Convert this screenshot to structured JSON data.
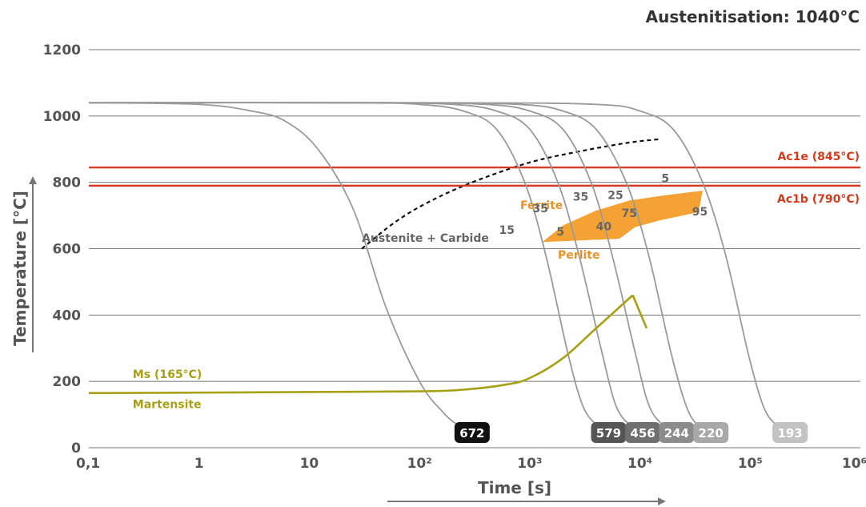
{
  "chart_data": {
    "type": "line",
    "title": "Austenitisation: 1040°C",
    "xlabel": "Time [s]",
    "ylabel": "Temperature [°C]",
    "x_scale": "log",
    "xlim": [
      0.1,
      1000000
    ],
    "ylim": [
      0,
      1200
    ],
    "x_ticks": [
      {
        "value": 0.1,
        "label": "0,1"
      },
      {
        "value": 1,
        "label": "1"
      },
      {
        "value": 10,
        "label": "10"
      },
      {
        "value": 100,
        "label": "10²"
      },
      {
        "value": 1000,
        "label": "10³"
      },
      {
        "value": 10000,
        "label": "10⁴"
      },
      {
        "value": 100000,
        "label": "10⁵"
      },
      {
        "value": 1000000,
        "label": "10⁶"
      }
    ],
    "y_ticks": [
      {
        "value": 0,
        "label": "0"
      },
      {
        "value": 200,
        "label": "200"
      },
      {
        "value": 400,
        "label": "400"
      },
      {
        "value": 600,
        "label": "600"
      },
      {
        "value": 800,
        "label": "800"
      },
      {
        "value": 1000,
        "label": "1000"
      },
      {
        "value": 1200,
        "label": "1200"
      }
    ],
    "grid": true,
    "reference_lines": [
      {
        "label": "Ac1e (845°C)",
        "y": 845
      },
      {
        "label": "Ac1b (790°C)",
        "y": 790
      }
    ],
    "cooling_curves": [
      {
        "hardness": "672",
        "hard_x": 300,
        "hard_color": "#111111",
        "points": [
          [
            0.1,
            1040
          ],
          [
            1,
            1035
          ],
          [
            3,
            1015
          ],
          [
            6,
            985
          ],
          [
            12,
            900
          ],
          [
            25,
            720
          ],
          [
            50,
            420
          ],
          [
            100,
            200
          ],
          [
            160,
            110
          ],
          [
            220,
            70
          ],
          [
            300,
            50
          ]
        ]
      },
      {
        "hardness": "579",
        "hard_x": 5200,
        "hard_color": "#555555",
        "points": [
          [
            0.1,
            1040
          ],
          [
            20,
            1040
          ],
          [
            100,
            1035
          ],
          [
            250,
            1015
          ],
          [
            500,
            960
          ],
          [
            900,
            800
          ],
          [
            1400,
            580
          ],
          [
            2200,
            290
          ],
          [
            3000,
            130
          ],
          [
            4000,
            70
          ],
          [
            5200,
            50
          ]
        ]
      },
      {
        "hardness": "456",
        "hard_x": 10600,
        "hard_color": "#6f6f6f",
        "points": [
          [
            0.1,
            1040
          ],
          [
            30,
            1040
          ],
          [
            200,
            1035
          ],
          [
            500,
            1015
          ],
          [
            1000,
            960
          ],
          [
            1800,
            800
          ],
          [
            2800,
            580
          ],
          [
            4500,
            290
          ],
          [
            6000,
            130
          ],
          [
            8000,
            70
          ],
          [
            10600,
            50
          ]
        ]
      },
      {
        "hardness": "244",
        "hard_x": 21500,
        "hard_color": "#8c8c8c",
        "points": [
          [
            0.1,
            1040
          ],
          [
            50,
            1040
          ],
          [
            400,
            1035
          ],
          [
            1000,
            1015
          ],
          [
            2000,
            960
          ],
          [
            3600,
            800
          ],
          [
            5600,
            580
          ],
          [
            9000,
            290
          ],
          [
            12000,
            130
          ],
          [
            16000,
            70
          ],
          [
            21500,
            50
          ]
        ]
      },
      {
        "hardness": "220",
        "hard_x": 44000,
        "hard_color": "#a8a8a8",
        "points": [
          [
            0.1,
            1040
          ],
          [
            80,
            1040
          ],
          [
            800,
            1035
          ],
          [
            2000,
            1015
          ],
          [
            4000,
            960
          ],
          [
            7500,
            800
          ],
          [
            12000,
            580
          ],
          [
            19000,
            290
          ],
          [
            26000,
            130
          ],
          [
            33000,
            70
          ],
          [
            44000,
            50
          ]
        ]
      },
      {
        "hardness": "193",
        "hard_x": 230000,
        "hard_color": "#c2c2c2",
        "points": [
          [
            0.1,
            1040
          ],
          [
            200,
            1040
          ],
          [
            4000,
            1035
          ],
          [
            10000,
            1015
          ],
          [
            20000,
            960
          ],
          [
            37000,
            800
          ],
          [
            60000,
            580
          ],
          [
            95000,
            290
          ],
          [
            130000,
            130
          ],
          [
            170000,
            70
          ],
          [
            230000,
            50
          ]
        ]
      }
    ],
    "carbide_boundary": [
      [
        30,
        600
      ],
      [
        60,
        680
      ],
      [
        120,
        740
      ],
      [
        300,
        800
      ],
      [
        1000,
        860
      ],
      [
        3000,
        895
      ],
      [
        8000,
        920
      ],
      [
        15000,
        930
      ]
    ],
    "transformation_region": {
      "name": "Ferrite / Perlite",
      "points": [
        [
          1300,
          620
        ],
        [
          2000,
          670
        ],
        [
          4000,
          715
        ],
        [
          8000,
          745
        ],
        [
          16000,
          760
        ],
        [
          37000,
          775
        ],
        [
          34000,
          710
        ],
        [
          15000,
          685
        ],
        [
          9000,
          665
        ],
        [
          6500,
          630
        ]
      ]
    },
    "phase_labels": [
      {
        "text": "Austenite + Carbide",
        "x": 30,
        "y": 620,
        "color": "#666666"
      },
      {
        "text": "Ferrite",
        "x": 820,
        "y": 720,
        "color": "#e8942a"
      },
      {
        "text": "Perlite",
        "x": 1800,
        "y": 570,
        "color": "#e8942a"
      }
    ],
    "percent_labels": [
      {
        "text": "15",
        "x": 620,
        "y": 645
      },
      {
        "text": "35",
        "x": 1250,
        "y": 710
      },
      {
        "text": "5",
        "x": 1900,
        "y": 640
      },
      {
        "text": "35",
        "x": 2900,
        "y": 745
      },
      {
        "text": "40",
        "x": 4700,
        "y": 655
      },
      {
        "text": "25",
        "x": 6000,
        "y": 750
      },
      {
        "text": "75",
        "x": 8000,
        "y": 695
      },
      {
        "text": "5",
        "x": 17000,
        "y": 800
      },
      {
        "text": "95",
        "x": 35000,
        "y": 700
      }
    ],
    "martensite": {
      "ms_label": "Ms (165°C)",
      "region_label": "Martensite",
      "points": [
        [
          0.1,
          165
        ],
        [
          1,
          166
        ],
        [
          10,
          168
        ],
        [
          100,
          170
        ],
        [
          250,
          175
        ],
        [
          600,
          190
        ],
        [
          1000,
          210
        ],
        [
          2000,
          270
        ],
        [
          4000,
          360
        ],
        [
          8600,
          460
        ]
      ],
      "tail": [
        [
          8600,
          460
        ],
        [
          11500,
          360
        ]
      ],
      "ms_label_pos": {
        "x": 0.25,
        "y": 210
      },
      "region_label_pos": {
        "x": 0.25,
        "y": 120
      }
    },
    "series_color": "#a7a015"
  }
}
